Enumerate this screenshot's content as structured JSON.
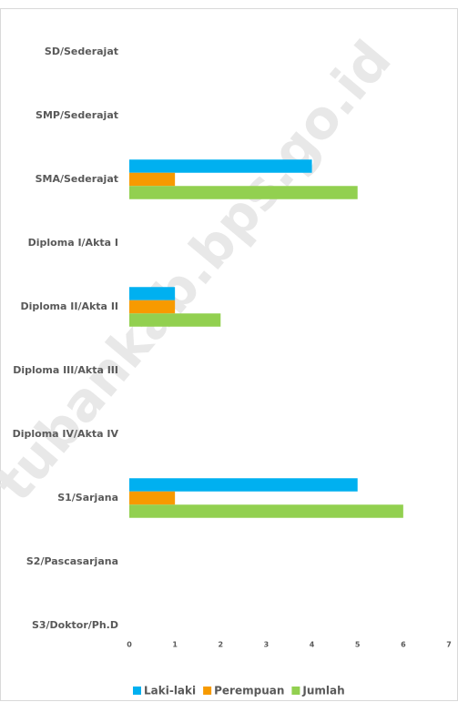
{
  "chart_data": {
    "type": "hbar",
    "watermark": "tubankab.bps.go.id",
    "categories": [
      "SD/Sederajat",
      "SMP/Sederajat",
      "SMA/Sederajat",
      "Diploma I/Akta I",
      "Diploma II/Akta II",
      "Diploma III/Akta III",
      "Diploma IV/Akta IV",
      "S1/Sarjana",
      "S2/Pascasarjana",
      "S3/Doktor/Ph.D"
    ],
    "series": [
      {
        "name": "Laki-laki",
        "color": "#00b0f0",
        "values": [
          0,
          0,
          4,
          0,
          1,
          0,
          0,
          5,
          0,
          0
        ]
      },
      {
        "name": "Perempuan",
        "color": "#f79a00",
        "values": [
          0,
          0,
          1,
          0,
          1,
          0,
          0,
          1,
          0,
          0
        ]
      },
      {
        "name": "Jumlah",
        "color": "#92d050",
        "values": [
          0,
          0,
          5,
          0,
          2,
          0,
          0,
          6,
          0,
          0
        ]
      }
    ],
    "xlim": [
      0,
      7
    ],
    "xticks": [
      0,
      1,
      2,
      3,
      4,
      5,
      6,
      7
    ],
    "grid": false,
    "legend": "bottom"
  }
}
